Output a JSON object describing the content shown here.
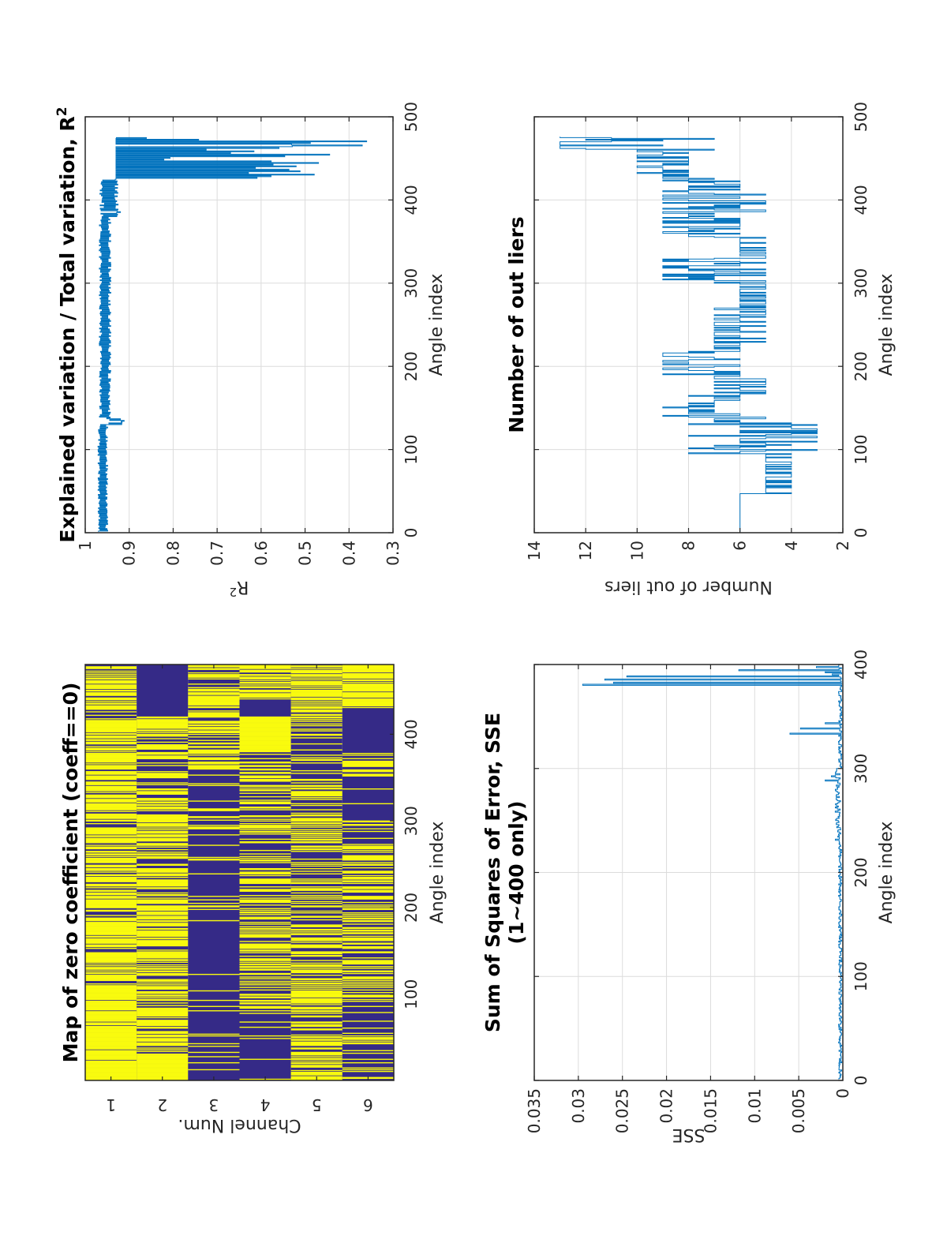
{
  "figure": {
    "orientation": "rotated 90 degrees counter-clockwise",
    "colors": {
      "line": "#0072bd",
      "heat_zero": "#f9fb0e",
      "heat_nonzero": "#352a87",
      "grid": "#dcdcdc",
      "axis": "#262626"
    }
  },
  "chart_data": [
    {
      "id": "zero_map",
      "type": "heatmap",
      "title": "Map of zero coefficient (coeff==0)",
      "xlabel": "Angle index",
      "ylabel": "Channel Num.",
      "x_ticks": [
        "100",
        "200",
        "300",
        "400"
      ],
      "x_tick_values": [
        100,
        200,
        300,
        400
      ],
      "xlim": [
        0.5,
        480.5
      ],
      "y_ticks": [
        "1",
        "2",
        "3",
        "4",
        "5",
        "6"
      ],
      "y_tick_values": [
        1,
        2,
        3,
        4,
        5,
        6
      ],
      "ylim": [
        0.5,
        6.5
      ],
      "grid": false,
      "legend": "none",
      "colorscale": {
        "0": "nonzero (dark blue)",
        "1": "zero coefficient (yellow)"
      },
      "channels": [
        {
          "channel": 1,
          "zero_fraction_by_range": [
            [
              0,
              20,
              1.0
            ],
            [
              20,
              110,
              0.85
            ],
            [
              110,
              180,
              0.8
            ],
            [
              180,
              290,
              0.75
            ],
            [
              290,
              380,
              0.7
            ],
            [
              380,
              480,
              0.6
            ]
          ]
        },
        {
          "channel": 2,
          "zero_fraction_by_range": [
            [
              0,
              30,
              1.0
            ],
            [
              30,
              90,
              0.65
            ],
            [
              90,
              180,
              0.55
            ],
            [
              180,
              250,
              0.75
            ],
            [
              250,
              340,
              0.55
            ],
            [
              340,
              420,
              0.5
            ],
            [
              420,
              480,
              0.0
            ]
          ]
        },
        {
          "channel": 3,
          "zero_fraction_by_range": [
            [
              0,
              30,
              0.05
            ],
            [
              30,
              110,
              0.1
            ],
            [
              110,
              180,
              0.05
            ],
            [
              180,
              300,
              0.1
            ],
            [
              300,
              360,
              0.15
            ],
            [
              360,
              400,
              0.5
            ],
            [
              400,
              480,
              0.6
            ]
          ]
        },
        {
          "channel": 4,
          "zero_fraction_by_range": [
            [
              0,
              60,
              0.05
            ],
            [
              60,
              110,
              0.3
            ],
            [
              110,
              180,
              0.5
            ],
            [
              180,
              300,
              0.45
            ],
            [
              300,
              380,
              0.4
            ],
            [
              380,
              420,
              1.0
            ],
            [
              420,
              440,
              0.0
            ],
            [
              440,
              480,
              0.7
            ]
          ]
        },
        {
          "channel": 5,
          "zero_fraction_by_range": [
            [
              0,
              30,
              0.7
            ],
            [
              30,
              110,
              0.5
            ],
            [
              110,
              180,
              0.6
            ],
            [
              180,
              300,
              0.45
            ],
            [
              300,
              380,
              0.5
            ],
            [
              380,
              420,
              0.45
            ],
            [
              420,
              480,
              0.75
            ]
          ]
        },
        {
          "channel": 6,
          "zero_fraction_by_range": [
            [
              0,
              110,
              0.3
            ],
            [
              110,
              180,
              0.55
            ],
            [
              180,
              300,
              0.45
            ],
            [
              300,
              350,
              0.05
            ],
            [
              350,
              380,
              0.5
            ],
            [
              380,
              430,
              0.0
            ],
            [
              430,
              480,
              0.8
            ]
          ]
        }
      ]
    },
    {
      "id": "r_squared",
      "type": "line",
      "title": "Explained variation / Total variation, R",
      "title_superscript": "2",
      "xlabel": "Angle index",
      "ylabel": "R",
      "ylabel_superscript": "2",
      "xlim": [
        0,
        500
      ],
      "ylim": [
        0.3,
        1
      ],
      "x_ticks": [
        "0",
        "100",
        "200",
        "300",
        "400",
        "500"
      ],
      "x_tick_values": [
        0,
        100,
        200,
        300,
        400,
        500
      ],
      "y_ticks": [
        "0.3",
        "0.4",
        "0.5",
        "0.6",
        "0.7",
        "0.8",
        "0.9",
        "1"
      ],
      "y_tick_values": [
        0.3,
        0.4,
        0.5,
        0.6,
        0.7,
        0.8,
        0.9,
        1.0
      ],
      "grid": true,
      "legend": "none",
      "segments": [
        {
          "x_range": [
            1,
            130
          ],
          "y_center": 0.96,
          "y_amplitude": 0.01
        },
        {
          "x_range": [
            130,
            138
          ],
          "y_center": 0.93,
          "y_amplitude": 0.02
        },
        {
          "x_range": [
            138,
            380
          ],
          "y_center": 0.955,
          "y_amplitude": 0.012
        },
        {
          "x_range": [
            380,
            425
          ],
          "y_center": 0.945,
          "y_amplitude": 0.02
        },
        {
          "x_range": [
            425,
            475
          ],
          "y_center": 0.65,
          "y_amplitude": 0.28
        }
      ],
      "notable_points": [
        [
          133,
          0.918
        ],
        [
          385,
          0.92
        ],
        [
          465,
          0.37
        ],
        [
          470,
          0.36
        ]
      ]
    },
    {
      "id": "sse",
      "type": "line",
      "title": "Sum of Squares of Error, SSE",
      "title_line2": "(1~400 only)",
      "xlabel": "Angle index",
      "ylabel": "SSE",
      "xlim": [
        0,
        400
      ],
      "ylim": [
        0,
        0.035
      ],
      "x_ticks": [
        "0",
        "100",
        "200",
        "300",
        "400"
      ],
      "x_tick_values": [
        0,
        100,
        200,
        300,
        400
      ],
      "y_ticks": [
        "0",
        "0.005",
        "0.01",
        "0.015",
        "0.02",
        "0.025",
        "0.03",
        "0.035"
      ],
      "y_tick_values": [
        0,
        0.005,
        0.01,
        0.015,
        0.02,
        0.025,
        0.03,
        0.035
      ],
      "grid": true,
      "legend": "none",
      "baseline": 0.0003,
      "spikes": [
        [
          288,
          0.002
        ],
        [
          292,
          0.0013
        ],
        [
          296,
          0.0008
        ],
        [
          333,
          0.006
        ],
        [
          338,
          0.0048
        ],
        [
          343,
          0.002
        ],
        [
          380,
          0.0295
        ],
        [
          382,
          0.026
        ],
        [
          385,
          0.027
        ],
        [
          388,
          0.0245
        ],
        [
          390,
          0.0012
        ],
        [
          392,
          0.002
        ],
        [
          394,
          0.0118
        ],
        [
          397,
          0.003
        ]
      ]
    },
    {
      "id": "outliers",
      "type": "line",
      "title": "Number of out liers",
      "xlabel": "Angle index",
      "ylabel": "Number of out liers",
      "xlim": [
        0,
        500
      ],
      "ylim": [
        2,
        14
      ],
      "x_ticks": [
        "0",
        "100",
        "200",
        "300",
        "400",
        "500"
      ],
      "x_tick_values": [
        0,
        100,
        200,
        300,
        400,
        500
      ],
      "y_ticks": [
        "2",
        "4",
        "6",
        "8",
        "10",
        "12",
        "14"
      ],
      "y_tick_values": [
        2,
        4,
        6,
        8,
        10,
        12,
        14
      ],
      "grid": true,
      "legend": "none",
      "segments": [
        {
          "x_range": [
            1,
            47
          ],
          "values": [
            6
          ]
        },
        {
          "x_range": [
            47,
            95
          ],
          "values": [
            4,
            5
          ]
        },
        {
          "x_range": [
            95,
            140
          ],
          "values": [
            3,
            4,
            5,
            6,
            7,
            8
          ]
        },
        {
          "x_range": [
            140,
            165
          ],
          "values": [
            6,
            7,
            8,
            9
          ]
        },
        {
          "x_range": [
            165,
            190
          ],
          "values": [
            5,
            6,
            7
          ]
        },
        {
          "x_range": [
            190,
            220
          ],
          "values": [
            6,
            7,
            8,
            9
          ]
        },
        {
          "x_range": [
            220,
            270
          ],
          "values": [
            5,
            6,
            7
          ]
        },
        {
          "x_range": [
            270,
            300
          ],
          "values": [
            5,
            6
          ]
        },
        {
          "x_range": [
            300,
            330
          ],
          "values": [
            5,
            6,
            7,
            8,
            9
          ]
        },
        {
          "x_range": [
            330,
            355
          ],
          "values": [
            5,
            6
          ]
        },
        {
          "x_range": [
            355,
            385
          ],
          "values": [
            6,
            7,
            8,
            9
          ]
        },
        {
          "x_range": [
            385,
            428
          ],
          "values": [
            5,
            6,
            7,
            8,
            9
          ]
        },
        {
          "x_range": [
            428,
            460
          ],
          "values": [
            8,
            9,
            10
          ]
        },
        {
          "x_range": [
            460,
            475
          ],
          "values": [
            7,
            9,
            11,
            12,
            13
          ]
        }
      ]
    }
  ]
}
